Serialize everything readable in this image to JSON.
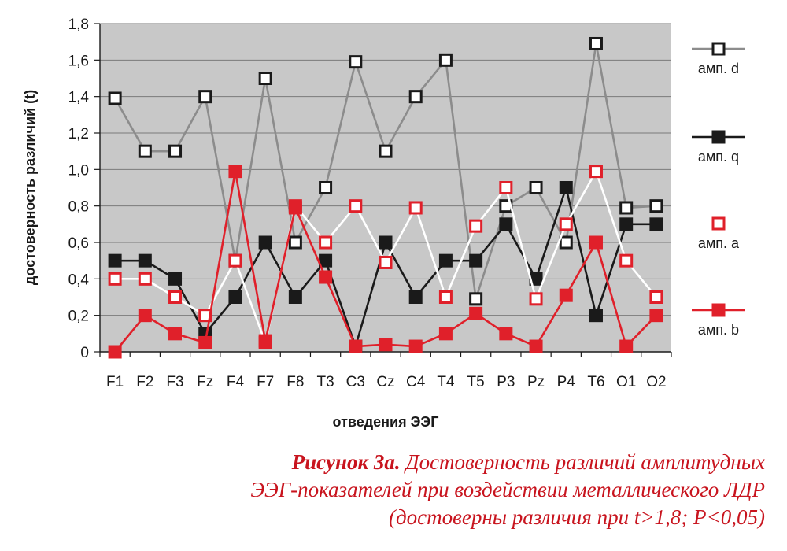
{
  "chart_data": {
    "type": "line",
    "categories": [
      "F1",
      "F2",
      "F3",
      "Fz",
      "F4",
      "F7",
      "F8",
      "T3",
      "C3",
      "Cz",
      "C4",
      "T4",
      "T5",
      "P3",
      "Pz",
      "P4",
      "T6",
      "O1",
      "O2"
    ],
    "ylabel": "достоверность различий (t)",
    "xlabel": "отведения ЭЭГ",
    "ylim": [
      0,
      1.8
    ],
    "yticks": [
      "0",
      "0,2",
      "0,4",
      "0,6",
      "0,8",
      "1,0",
      "1,2",
      "1,4",
      "1,6",
      "1,8"
    ],
    "grid": true,
    "legend_position": "right",
    "background_color": "#c8c8c8",
    "series": [
      {
        "name": "амп. d",
        "line_color": "#8c8c8c",
        "marker_fill": "#ffffff",
        "marker_stroke": "#1a1a1a",
        "values": [
          1.39,
          1.1,
          1.1,
          1.4,
          0.5,
          1.5,
          0.6,
          0.9,
          1.59,
          1.1,
          1.4,
          1.6,
          0.29,
          0.8,
          0.9,
          0.6,
          1.69,
          0.79,
          0.8
        ]
      },
      {
        "name": "амп. q",
        "line_color": "#1a1a1a",
        "marker_fill": "#1a1a1a",
        "marker_stroke": "#1a1a1a",
        "values": [
          0.5,
          0.5,
          0.4,
          0.1,
          0.3,
          0.6,
          0.3,
          0.5,
          0.03,
          0.6,
          0.3,
          0.5,
          0.5,
          0.7,
          0.4,
          0.9,
          0.2,
          0.7,
          0.7
        ]
      },
      {
        "name": "амп. a",
        "line_color": "#ffffff",
        "marker_fill": "#ffffff",
        "marker_stroke": "#e0202a",
        "values": [
          0.4,
          0.4,
          0.3,
          0.2,
          0.5,
          0.05,
          0.8,
          0.6,
          0.8,
          0.49,
          0.79,
          0.3,
          0.69,
          0.9,
          0.29,
          0.7,
          0.99,
          0.5,
          0.3
        ]
      },
      {
        "name": "амп. b",
        "line_color": "#e0202a",
        "marker_fill": "#e0202a",
        "marker_stroke": "#e0202a",
        "values": [
          0.0,
          0.2,
          0.1,
          0.05,
          0.99,
          0.06,
          0.79,
          0.41,
          0.03,
          0.04,
          0.03,
          0.1,
          0.21,
          0.1,
          0.03,
          0.31,
          0.6,
          0.03,
          0.2
        ]
      }
    ]
  },
  "caption": {
    "line1_bold": "Рисунок 3а.",
    "line1_rest": " Достоверность различий амплитудных",
    "line2": "ЭЭГ-показателей при воздействии металлического ЛДР",
    "line3": "(достоверны различия при t>1,8; P<0,05)"
  }
}
